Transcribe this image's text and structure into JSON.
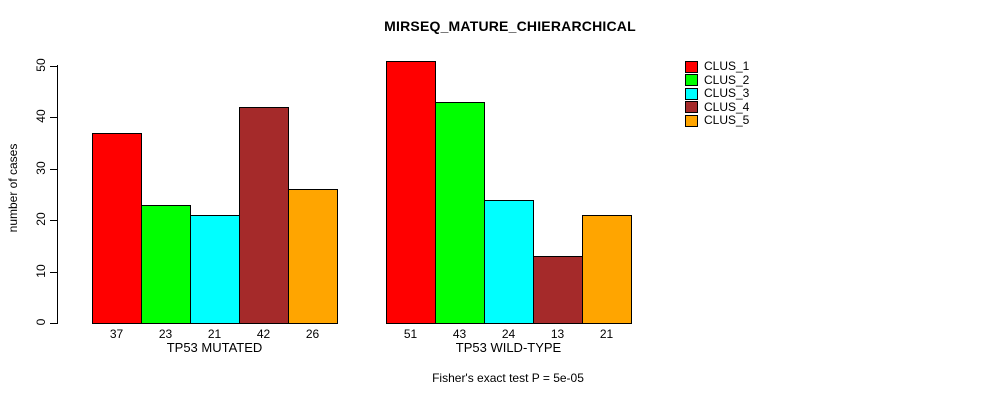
{
  "chart_data": {
    "type": "bar",
    "title": "MIRSEQ_MATURE_CHIERARCHICAL",
    "xlabel": "",
    "ylabel": "number of cases",
    "ylim": [
      0,
      50
    ],
    "yticks": [
      0,
      10,
      20,
      30,
      40,
      50
    ],
    "grid": false,
    "legend_position": "right-outside",
    "categories": [
      "TP53 MUTATED",
      "TP53 WILD-TYPE"
    ],
    "series": [
      {
        "name": "CLUS_1",
        "color": "#FF0000",
        "values": [
          37,
          51
        ]
      },
      {
        "name": "CLUS_2",
        "color": "#00FF00",
        "values": [
          23,
          43
        ]
      },
      {
        "name": "CLUS_3",
        "color": "#00FFFF",
        "values": [
          21,
          24
        ]
      },
      {
        "name": "CLUS_4",
        "color": "#A52A2A",
        "values": [
          42,
          13
        ]
      },
      {
        "name": "CLUS_5",
        "color": "#FFA500",
        "values": [
          26,
          21
        ]
      }
    ],
    "bar_value_labels": {
      "TP53 MUTATED": [
        37,
        23,
        21,
        42,
        26
      ],
      "TP53 WILD-TYPE": [
        51,
        43,
        24,
        13,
        21
      ]
    },
    "footnote": "Fisher's exact test P = 5e-05"
  },
  "colors": {
    "background": "#FFFFFF",
    "axis": "#000000",
    "text": "#000000",
    "bar_border": "#000000"
  }
}
